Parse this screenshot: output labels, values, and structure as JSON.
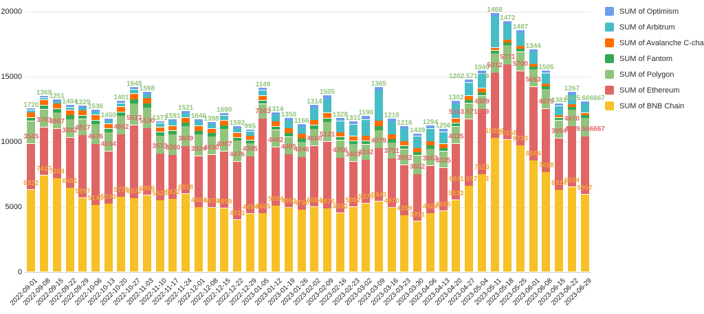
{
  "legend": {
    "items": [
      {
        "label": "SUM of Optimism",
        "color": "#6d9eeb"
      },
      {
        "label": "SUM of Arbitrum",
        "color": "#46bdc6"
      },
      {
        "label": "SUM of Avalanche C-chain",
        "color": "#ff6d01"
      },
      {
        "label": "SUM of Fantom",
        "color": "#34a853"
      },
      {
        "label": "SUM of Polygon",
        "color": "#93c47d"
      },
      {
        "label": "SUM of Ethereum",
        "color": "#e06666"
      },
      {
        "label": "SUM of BNB Chain",
        "color": "#f6c026"
      }
    ]
  },
  "y_axis": {
    "ticks": [
      "0",
      "5000",
      "10000",
      "15000",
      "20000"
    ],
    "max": 20000
  },
  "chart_data": {
    "type": "bar",
    "stacked": true,
    "grid": true,
    "legend_position": "right",
    "ylim": [
      0,
      20000
    ],
    "categories": [
      "2022-09-01",
      "2022-09-08",
      "2022-09-15",
      "2022-09-22",
      "2022-09-29",
      "2022-10-06",
      "2022-10-13",
      "2022-10-20",
      "2022-10-27",
      "2022-11-03",
      "2022-11-10",
      "2022-11-17",
      "2022-11-24",
      "2022-12-01",
      "2022-12-08",
      "2022-12-15",
      "2022-12-22",
      "2022-12-29",
      "2023-01-05",
      "2023-01-12",
      "2023-01-19",
      "2023-01-26",
      "2023-02-02",
      "2023-02-09",
      "2023-02-16",
      "2023-02-23",
      "2023-03-02",
      "2023-03-09",
      "2023-03-16",
      "2023-03-23",
      "2023-03-30",
      "2023-04-06",
      "2023-04-13",
      "2023-04-20",
      "2023-04-27",
      "2023-05-04",
      "2023-05-11",
      "2023-05-18",
      "2023-05-25",
      "2023-06-01",
      "2023-06-08",
      "2023-06-15",
      "2023-06-22",
      "2023-06-29"
    ],
    "series": [
      {
        "name": "SUM of BNB Chain",
        "color": "#f6c026",
        "label_color": "#f0a73a",
        "values": [
          6322,
          7427,
          7204,
          6461,
          5697,
          5145,
          5243,
          5775,
          5672,
          5899,
          5525,
          5622,
          6018,
          4984,
          4973,
          4899,
          4013,
          4494,
          4505,
          5094,
          4953,
          4780,
          5004,
          4876,
          4532,
          5002,
          5275,
          5443,
          4970,
          4359,
          3911,
          4504,
          4685,
          5533,
          6611.857143,
          7520,
          10298,
          10158,
          9733,
          8564,
          7658,
          6314,
          6534,
          5957
        ],
        "labels": [
          "6322",
          "7427",
          "7204",
          "6461",
          "5697",
          "5145",
          "5243",
          "5775",
          "5672",
          "5899",
          "5525",
          "5622",
          "6018",
          "4984",
          "4973",
          "4899",
          "4013",
          "4494",
          "4505",
          "5094",
          "4953",
          "4780",
          "5004",
          "4876",
          "4532",
          "5002",
          "5275",
          "5443",
          "4970",
          "4359",
          "3911",
          "4504",
          "4685",
          "5533",
          "6611.857143",
          "7520",
          "10298",
          "10158",
          "9733",
          "8564",
          "7658",
          "6314",
          "6534",
          "5957"
        ]
      },
      {
        "name": "SUM of Ethereum",
        "color": "#e06666",
        "label_color": "#e06666",
        "values": [
          3545,
          3703,
          3807,
          3862,
          4817,
          4676,
          4034,
          4802,
          5617,
          5130,
          3573,
          3360,
          3649,
          3924,
          4030,
          4387,
          4476,
          4395,
          7263,
          4492,
          4085,
          4046,
          4680,
          5131,
          4256,
          3483,
          3332,
          4079,
          3751,
          3852,
          3602,
          3663,
          3335,
          4335,
          5143.571429,
          4989,
          5012,
          5771,
          5700,
          5663,
          4879,
          3954,
          4670,
          4449.666667
        ],
        "labels": [
          "3545",
          "3703",
          "3807",
          "3862",
          "4817",
          "4676",
          "4034",
          "4802",
          "5617",
          "5130",
          "3573",
          "3360",
          "3649",
          "3924",
          "4030",
          "4387",
          "4476",
          "4395",
          "7263",
          "4492",
          "4085",
          "4046",
          "4680",
          "5131",
          "4256",
          "3483",
          "3332",
          "4079",
          "3751",
          "3852",
          "3602",
          "3663",
          "3335",
          "4335",
          "5143.571429",
          "4989",
          "5012",
          "5771",
          "5700",
          "5663",
          "4879",
          "3954",
          "4670",
          "4449.666667"
        ]
      },
      {
        "name": "SUM of Polygon",
        "color": "#93c47d",
        "label_color": "#93c47d",
        "values": [
          1720,
          1369,
          1251,
          1404,
          1229,
          1536,
          1450,
          1401,
          1648,
          1598,
          1371,
          1591,
          1521,
          1646,
          1398,
          1690,
          1592,
          995,
          1149,
          1314,
          1350,
          1166,
          1314,
          1505,
          1328,
          1331,
          1190,
          1365,
          1218,
          1216,
          1439,
          1294,
          1256,
          1302,
          1202.571429,
          1040,
          1468,
          1472,
          1487,
          1344,
          1505,
          1381,
          1267,
          1425.666667
        ],
        "labels": [
          "1720",
          "1369",
          "1251",
          "1404",
          "1229",
          "1536",
          "1450",
          "1401",
          "1648",
          "1598",
          "1371",
          "1591",
          "1521",
          "1646",
          "1398",
          "1690",
          "1592",
          "995",
          "1149",
          "1314",
          "1350",
          "1166",
          "1314",
          "1505",
          "1328",
          "1331",
          "1190",
          "1365",
          "1218",
          "1216",
          "1439",
          "1294",
          "1256",
          "1302",
          "1202.571429",
          "1040",
          "1468",
          "1472",
          "1487",
          "1344",
          "1505",
          "1381",
          "1267",
          "1425.666667"
        ]
      },
      {
        "name": "SUM of Fantom",
        "color": "#34a853",
        "estimated": true,
        "values": [
          280,
          300,
          280,
          300,
          280,
          300,
          280,
          300,
          320,
          300,
          280,
          280,
          280,
          280,
          260,
          280,
          260,
          240,
          260,
          280,
          280,
          260,
          280,
          300,
          260,
          260,
          280,
          320,
          260,
          260,
          240,
          250,
          240,
          260,
          250,
          240,
          230,
          220,
          220,
          210,
          220,
          200,
          210,
          200
        ]
      },
      {
        "name": "SUM of Avalanche C-chain",
        "color": "#ff6d01",
        "estimated": true,
        "values": [
          380,
          420,
          400,
          420,
          380,
          400,
          380,
          420,
          450,
          420,
          380,
          380,
          400,
          380,
          360,
          380,
          350,
          330,
          360,
          380,
          380,
          360,
          380,
          400,
          360,
          360,
          380,
          420,
          360,
          350,
          330,
          340,
          330,
          360,
          340,
          330,
          220,
          210,
          210,
          200,
          210,
          190,
          200,
          190
        ]
      },
      {
        "name": "SUM of Arbitrum",
        "color": "#46bdc6",
        "estimated": true,
        "values": [
          180,
          160,
          150,
          200,
          220,
          250,
          230,
          260,
          300,
          280,
          300,
          320,
          330,
          350,
          340,
          380,
          360,
          340,
          420,
          520,
          560,
          540,
          900,
          1100,
          850,
          900,
          1250,
          2300,
          1000,
          950,
          900,
          950,
          900,
          1100,
          1000,
          1100,
          2400,
          1200,
          1000,
          900,
          800,
          700,
          750,
          700
        ]
      },
      {
        "name": "SUM of Optimism",
        "color": "#6d9eeb",
        "estimated": true,
        "values": [
          150,
          170,
          160,
          180,
          160,
          170,
          160,
          180,
          200,
          190,
          170,
          180,
          180,
          180,
          170,
          190,
          170,
          160,
          180,
          200,
          210,
          200,
          260,
          280,
          240,
          250,
          280,
          300,
          250,
          240,
          230,
          240,
          230,
          260,
          250,
          260,
          260,
          250,
          240,
          230,
          220,
          200,
          210,
          200
        ]
      }
    ]
  }
}
